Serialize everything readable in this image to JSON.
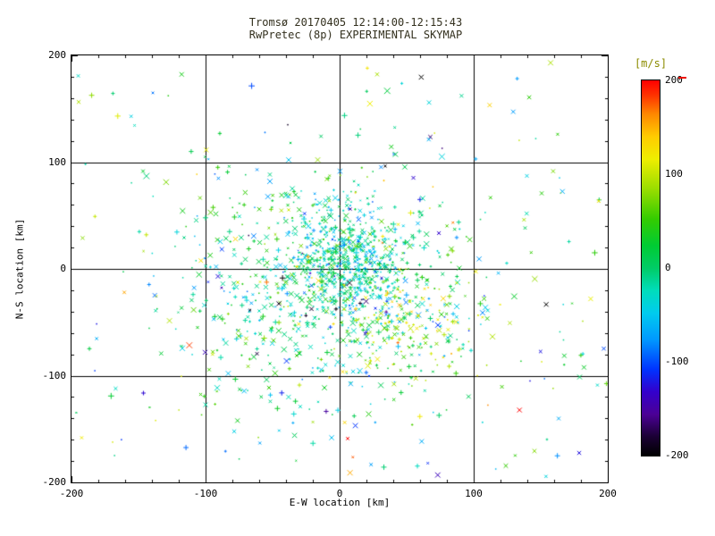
{
  "chart_data": {
    "type": "scatter",
    "title": "Tromsø 20170405 12:14:00-12:15:43",
    "subtitle": "RwPretec (8p) EXPERIMENTAL SKYMAP",
    "xlabel": "E-W location [km]",
    "ylabel": "N-S location [km]",
    "xlim": [
      -200,
      200
    ],
    "ylim": [
      -200,
      200
    ],
    "xticks": [
      -200,
      -100,
      0,
      100,
      200
    ],
    "yticks": [
      -200,
      -100,
      0,
      100,
      200
    ],
    "grid": [
      -100,
      0,
      100
    ],
    "minor_tick_step": 20,
    "legend": "none",
    "colorbar": {
      "label": "[m/s]",
      "min": -200,
      "max": 200,
      "ticks": [
        200,
        100,
        0,
        -100,
        -200
      ],
      "colormap": [
        {
          "f": 0.0,
          "c": "#000000"
        },
        {
          "f": 0.05,
          "c": "#1a0033"
        },
        {
          "f": 0.11,
          "c": "#4b0096"
        },
        {
          "f": 0.17,
          "c": "#3300cc"
        },
        {
          "f": 0.23,
          "c": "#0033ff"
        },
        {
          "f": 0.31,
          "c": "#0099ff"
        },
        {
          "f": 0.38,
          "c": "#00ccee"
        },
        {
          "f": 0.44,
          "c": "#00ddbb"
        },
        {
          "f": 0.5,
          "c": "#00cc66"
        },
        {
          "f": 0.56,
          "c": "#00cc33"
        },
        {
          "f": 0.63,
          "c": "#33cc00"
        },
        {
          "f": 0.71,
          "c": "#99dd00"
        },
        {
          "f": 0.79,
          "c": "#eeee00"
        },
        {
          "f": 0.85,
          "c": "#ffcc00"
        },
        {
          "f": 0.91,
          "c": "#ff8800"
        },
        {
          "f": 0.96,
          "c": "#ff3300"
        },
        {
          "f": 1.0,
          "c": "#ff0000"
        }
      ]
    },
    "point_style": {
      "colored_by": "doppler velocity [m/s]",
      "marker_mix": [
        {
          "type": "x",
          "weight": 0.55
        },
        {
          "type": "plus",
          "weight": 0.25
        },
        {
          "type": "dot",
          "weight": 0.2
        }
      ]
    },
    "seed": 20170405,
    "clusters": [
      {
        "shape": "gauss",
        "n": 520,
        "cx": 8,
        "cy": 8,
        "sx": 20,
        "sy": 26,
        "vmean": -25,
        "vsd": 38,
        "size_scale": 0.65
      },
      {
        "shape": "gauss",
        "n": 620,
        "cx": -8,
        "cy": -12,
        "sx": 52,
        "sy": 52,
        "vmean": -5,
        "vsd": 45,
        "size_scale": 1.0
      },
      {
        "shape": "gauss",
        "n": 300,
        "cx": 0,
        "cy": -25,
        "sx": 95,
        "sy": 72,
        "vmean": 10,
        "vsd": 65,
        "size_scale": 1.0
      },
      {
        "shape": "gauss",
        "n": 120,
        "cx": 45,
        "cy": -55,
        "sx": 32,
        "sy": 26,
        "vmean": 95,
        "vsd": 30,
        "size_scale": 0.9
      },
      {
        "shape": "gauss",
        "n": 10,
        "cx": -8,
        "cy": -35,
        "sx": 22,
        "sy": 18,
        "vmean": -185,
        "vsd": 12,
        "size_scale": 1.4
      },
      {
        "shape": "uniform",
        "n": 140,
        "xr": [
          -195,
          195
        ],
        "yr": [
          -195,
          195
        ],
        "vmean": 0,
        "vsd": 105,
        "size_scale": 1.1
      }
    ]
  }
}
